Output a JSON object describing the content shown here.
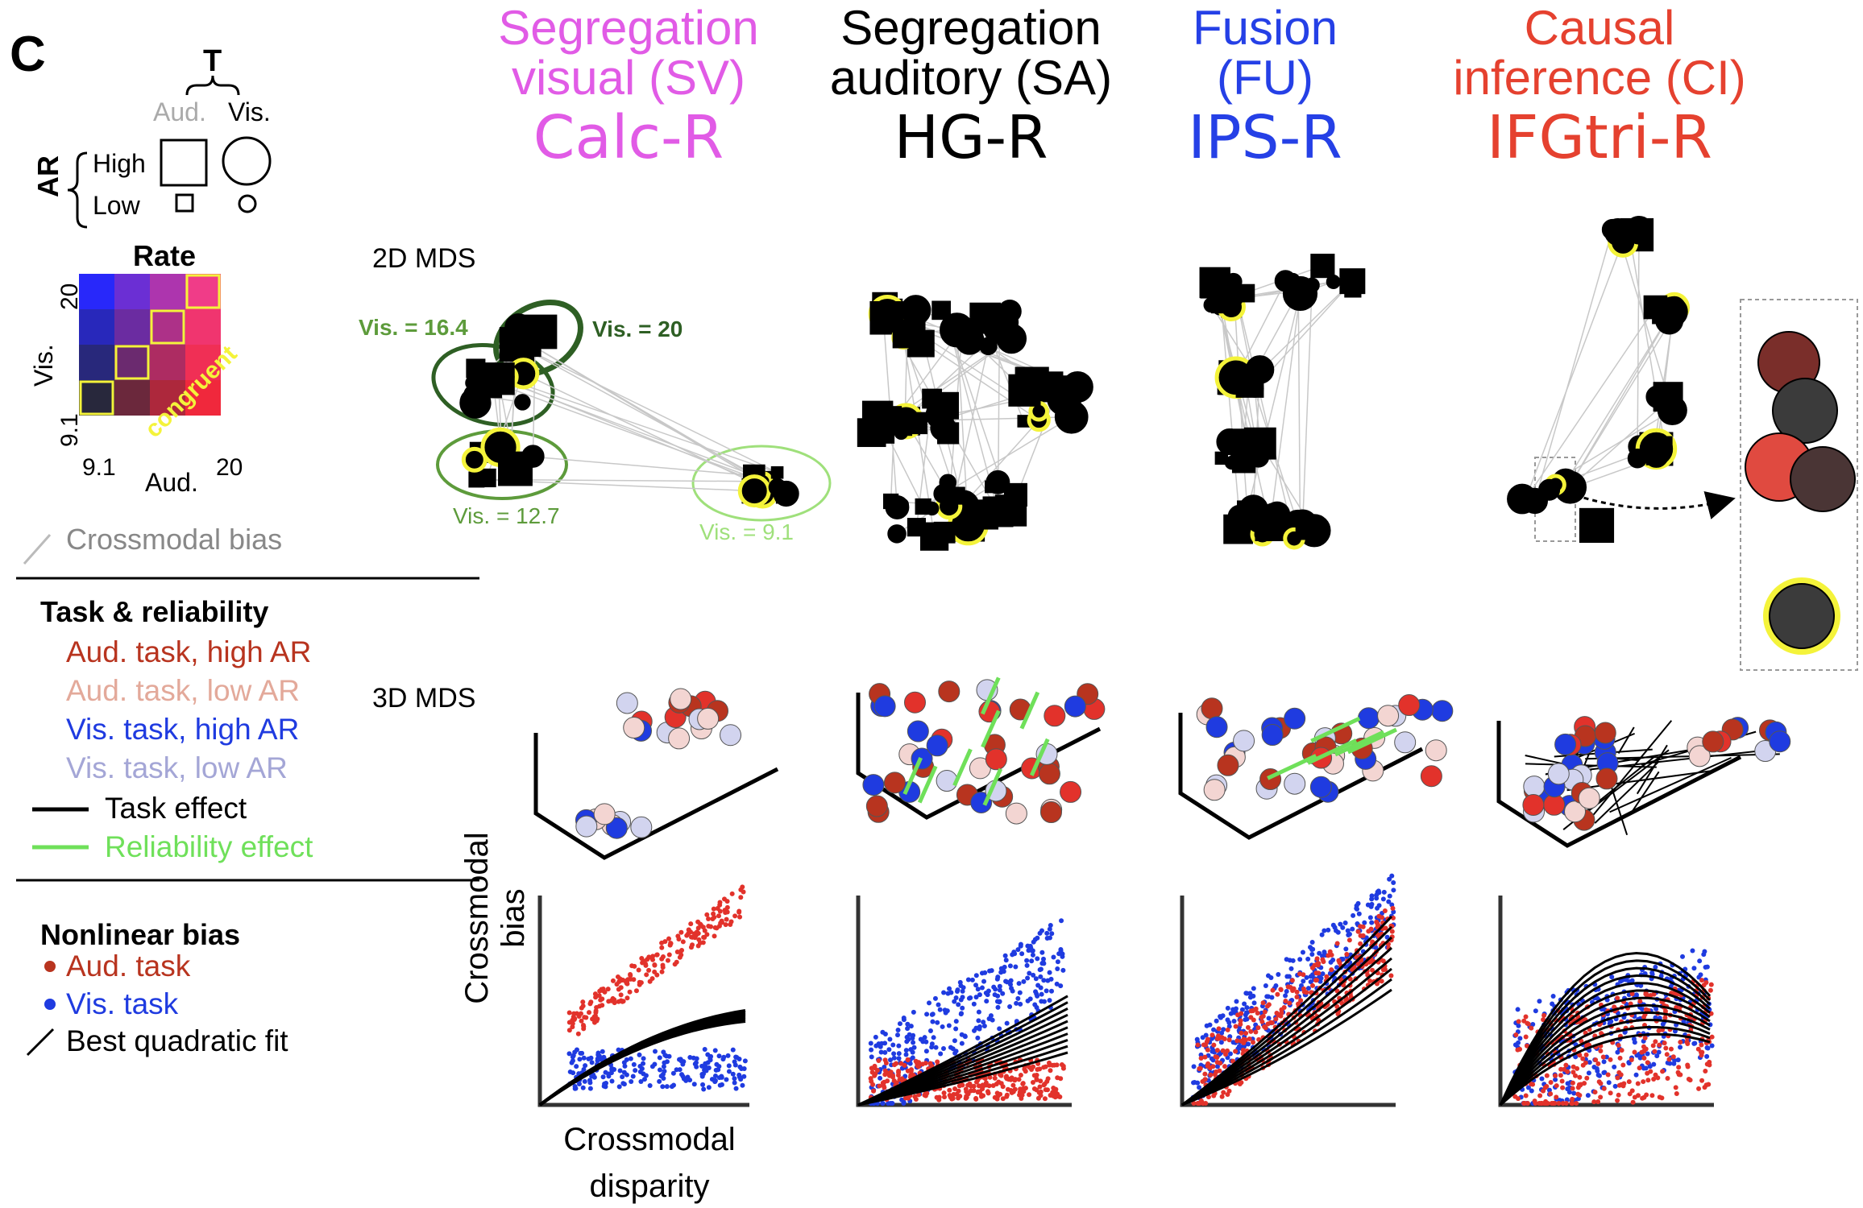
{
  "panel_letter": "C",
  "key": {
    "T_label": "T",
    "aud_label": "Aud.",
    "vis_label": "Vis.",
    "AR_label": "AR",
    "high_label": "High",
    "low_label": "Low"
  },
  "rate": {
    "title": "Rate",
    "y_label": "Vis.",
    "x_label": "Aud.",
    "y_ticks": [
      "20",
      "9.1"
    ],
    "x_ticks": [
      "9.1",
      "20"
    ],
    "diag_label": "congruent"
  },
  "columns": [
    {
      "model": "Segregation",
      "model2": "visual (SV)",
      "region": "Calc-R",
      "color": "#e15be6"
    },
    {
      "model": "Segregation",
      "model2": "auditory (SA)",
      "region": "HG-R",
      "color": "#000000"
    },
    {
      "model": "Fusion",
      "model2": "(FU)",
      "region": "IPS-R",
      "color": "#2540e6"
    },
    {
      "model": "Causal",
      "model2": "inference (CI)",
      "region": "IFGtri-R",
      "color": "#e5412f"
    }
  ],
  "row_labels": {
    "mds2d": "2D MDS",
    "mds3d": "3D MDS"
  },
  "clusters": {
    "v164": "Vis. = 16.4",
    "v20": "Vis. = 20",
    "v127": "Vis. = 12.7",
    "v91": "Vis. = 9.1"
  },
  "legend": {
    "crossmodal_bias": "Crossmodal bias",
    "task_reliability_title": "Task & reliability",
    "aud_high": "Aud. task, high AR",
    "aud_low": "Aud. task, low AR",
    "vis_high": "Vis. task, high AR",
    "vis_low": "Vis. task, low AR",
    "task_effect": "Task effect",
    "reliability_effect": "Reliability effect",
    "nonlinear_title": "Nonlinear bias",
    "aud_task": "Aud. task",
    "vis_task": "Vis. task",
    "best_fit": "Best quadratic fit"
  },
  "colors": {
    "aud_high": "#b8341f",
    "aud_low": "#e3a99a",
    "vis_high": "#1f3be0",
    "vis_low": "#a4a6d6",
    "task_effect": "#000000",
    "reliability_effect": "#6fe05a",
    "cluster_dark": "#2e5f24",
    "cluster_mid": "#5d9b3b",
    "cluster_light": "#9fe07b",
    "congruent": "#f4f33a"
  },
  "scatter_axes": {
    "y_label": "Crossmodal bias",
    "x_label": "Crossmodal disparity"
  }
}
